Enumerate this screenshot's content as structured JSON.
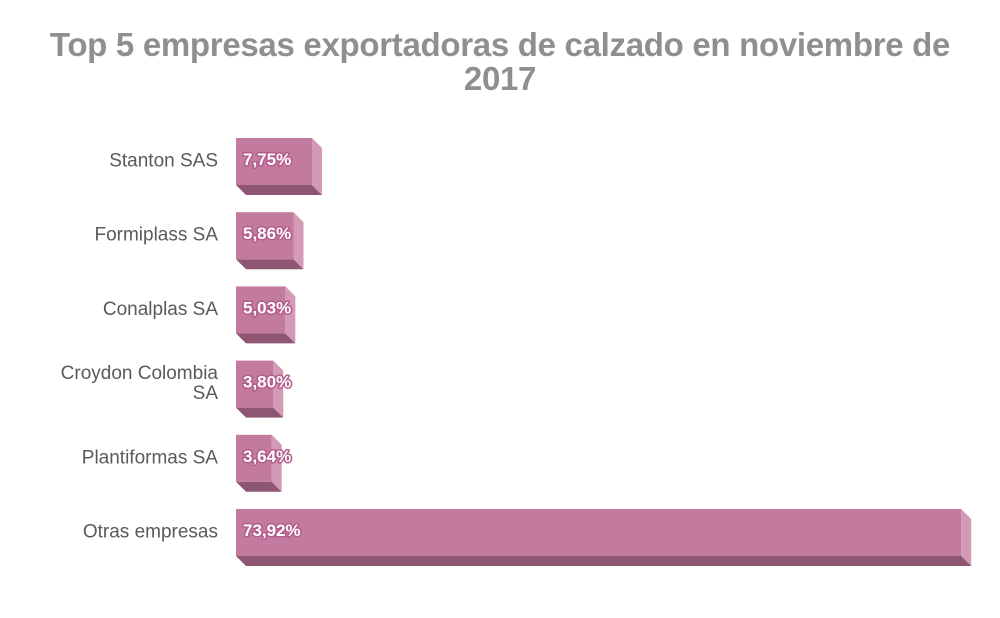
{
  "chart_data": {
    "type": "bar",
    "orientation": "horizontal",
    "title": "Top 5 empresas exportadoras de calzado en noviembre de 2017",
    "categories": [
      "Stanton SAS",
      "Formiplass SA",
      "Conalplas SA",
      "Croydon Colombia SA",
      "Plantiformas SA",
      "Otras empresas"
    ],
    "category_lines": [
      [
        "Stanton SAS"
      ],
      [
        "Formiplass SA"
      ],
      [
        "Conalplas SA"
      ],
      [
        "Croydon Colombia",
        "SA"
      ],
      [
        "Plantiformas SA"
      ],
      [
        "Otras empresas"
      ]
    ],
    "values": [
      7.75,
      5.86,
      5.03,
      3.8,
      3.64,
      73.92
    ],
    "value_labels": [
      "7,75%",
      "5,86%",
      "5,03%",
      "3,80%",
      "3,64%",
      "73,92%"
    ],
    "xlim": [
      0,
      74
    ],
    "xlabel": "",
    "ylabel": "",
    "grid": false,
    "legend": "none"
  },
  "colors": {
    "bar_front": "#c27a9f",
    "bar_side": "#d399b5",
    "bar_bottom": "#8e5673",
    "title": "#8f8f8f",
    "category_text": "#5a5a5a",
    "value_text": "#ffffff"
  }
}
